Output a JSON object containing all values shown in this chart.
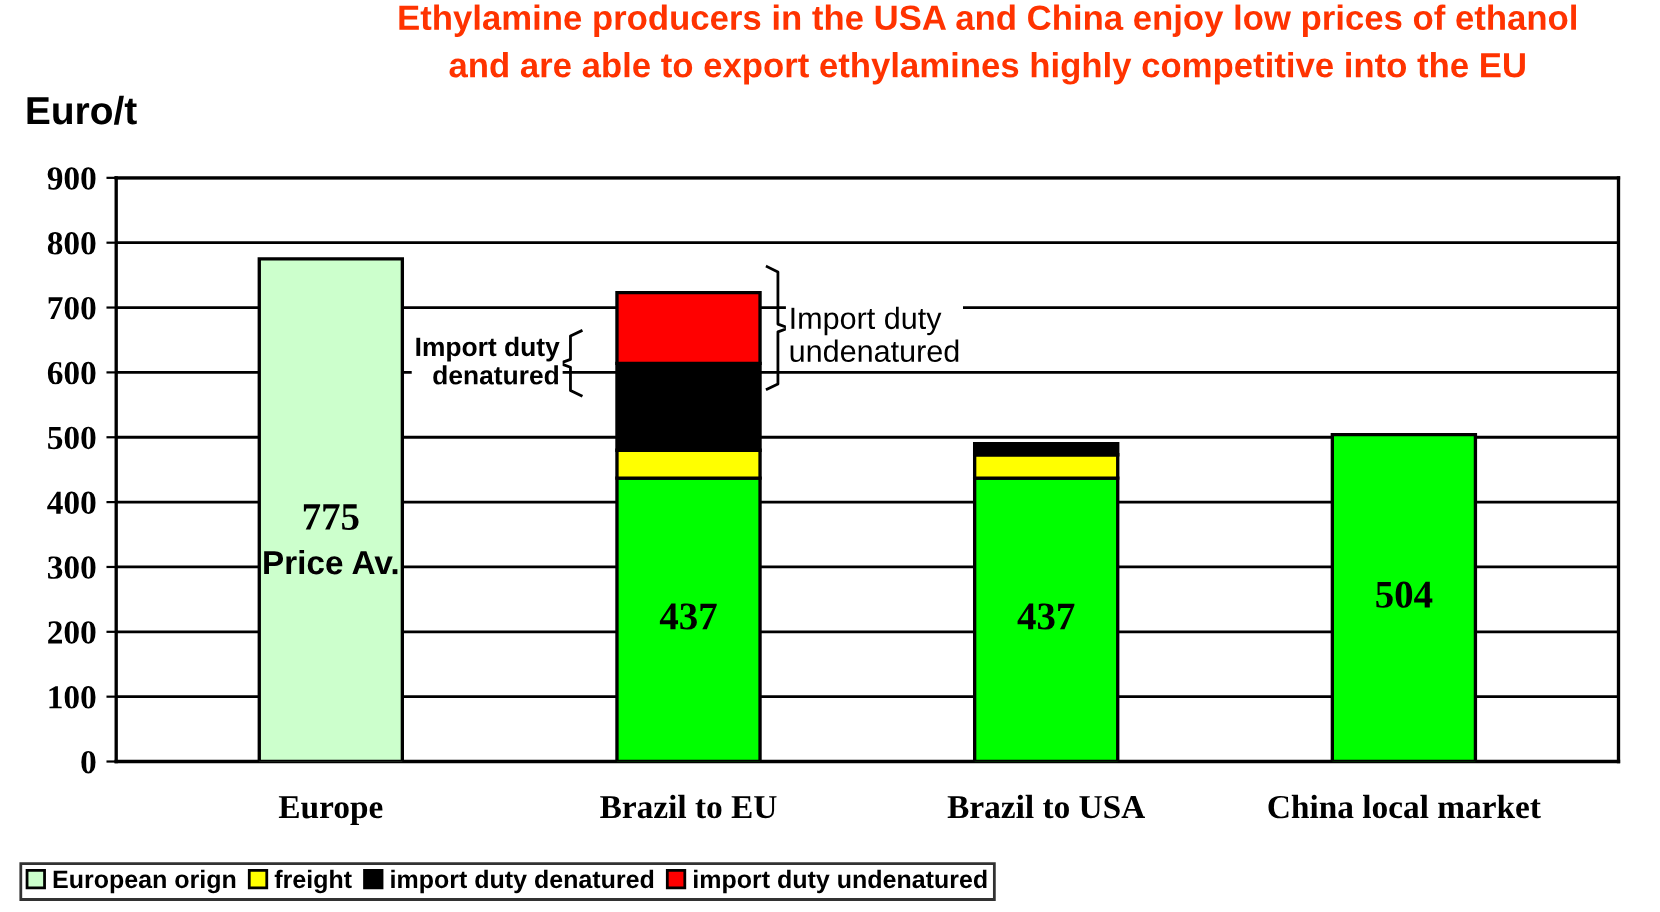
{
  "chart_data": {
    "type": "bar",
    "stacked": true,
    "title": "Ethylamine producers in the USA and China enjoy low prices of ethanol\nand are able to export ethylamines highly competitive into the EU",
    "ylabel": "Euro/t",
    "categories": [
      "Europe",
      "Brazil to EU",
      "Brazil to USA",
      "China local market"
    ],
    "series": [
      {
        "name": "European orign",
        "color": "#ccffcc",
        "colors": [
          "#ccffcc",
          "#00ff00",
          "#00ff00",
          "#00ff00"
        ],
        "values": [
          775,
          437,
          437,
          504
        ],
        "value_labels": [
          "775",
          "437",
          "437",
          "504"
        ]
      },
      {
        "name": "freight",
        "color": "#ffff00",
        "values": [
          null,
          43,
          36,
          null
        ]
      },
      {
        "name": "import duty denatured",
        "color": "#000000",
        "values": [
          null,
          134,
          17,
          null
        ]
      },
      {
        "name": "import duty undenatured",
        "color": "#ff0000",
        "values": [
          null,
          109,
          null,
          null
        ]
      }
    ],
    "ylim": [
      0,
      900
    ],
    "yticks": [
      0,
      100,
      200,
      300,
      400,
      500,
      600,
      700,
      800,
      900
    ],
    "grid": "y",
    "legend": "bottom left",
    "annotations": [
      "Price Av.",
      "Import duty\ndenatured",
      "Import duty\nundenatured"
    ]
  }
}
